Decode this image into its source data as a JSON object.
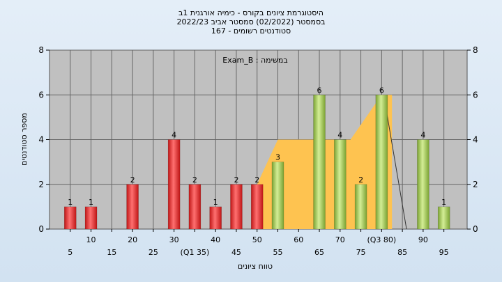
{
  "chart_data": {
    "type": "bar",
    "title_lines": [
      "היסטוגרמת ציונים בקורס - כימיה אורגנית 1ב",
      "בסמסטר  (02/2022)  סמסטר אביב 2022/23",
      "סטודנטים רשומים - 167"
    ],
    "annotation": "Exam_B : במשימה",
    "ylabel": "מספר סטודנטים",
    "xlabel": "טווח ציונים",
    "ylim": [
      0,
      8
    ],
    "yticks": [
      0,
      2,
      4,
      6,
      8
    ],
    "grid": true,
    "x": [
      5,
      10,
      20,
      30,
      35,
      40,
      45,
      50,
      55,
      65,
      70,
      75,
      80,
      90,
      95
    ],
    "values": [
      1,
      1,
      2,
      4,
      2,
      1,
      2,
      2,
      3,
      6,
      4,
      2,
      6,
      4,
      1
    ],
    "bar_colors": [
      "red",
      "red",
      "red",
      "red",
      "red",
      "red",
      "red",
      "red",
      "green",
      "green",
      "green",
      "green",
      "green",
      "green",
      "green"
    ],
    "xtick_labels": [
      {
        "x": 5,
        "label": "5",
        "row": 2
      },
      {
        "x": 10,
        "label": "10",
        "row": 1
      },
      {
        "x": 15,
        "label": "15",
        "row": 2
      },
      {
        "x": 20,
        "label": "20",
        "row": 1
      },
      {
        "x": 25,
        "label": "25",
        "row": 2
      },
      {
        "x": 30,
        "label": "30",
        "row": 1
      },
      {
        "x": 35,
        "label": "(Q1 35)",
        "row": 2
      },
      {
        "x": 40,
        "label": "40",
        "row": 1
      },
      {
        "x": 45,
        "label": "45",
        "row": 2
      },
      {
        "x": 50,
        "label": "50",
        "row": 1
      },
      {
        "x": 55,
        "label": "55",
        "row": 2
      },
      {
        "x": 60,
        "label": "60",
        "row": 1
      },
      {
        "x": 65,
        "label": "65",
        "row": 2
      },
      {
        "x": 70,
        "label": "70",
        "row": 1
      },
      {
        "x": 75,
        "label": "75",
        "row": 2
      },
      {
        "x": 80,
        "label": "(Q3 80)",
        "row": 1
      },
      {
        "x": 85,
        "label": "85",
        "row": 2
      },
      {
        "x": 90,
        "label": "90",
        "row": 1
      },
      {
        "x": 95,
        "label": "95",
        "row": 2
      }
    ],
    "quartile_area": {
      "x": [
        50,
        55,
        60,
        65,
        70,
        72.5,
        80,
        82.5
      ],
      "y": [
        2,
        4,
        4,
        4,
        4,
        4,
        6,
        6
      ]
    },
    "colors": {
      "plot_bg": "#c0c0c0",
      "area": "#fec350",
      "red_light": "#ff7070",
      "red_dark": "#bf1616",
      "green_light": "#d4ee96",
      "green_dark": "#7aa232"
    }
  }
}
